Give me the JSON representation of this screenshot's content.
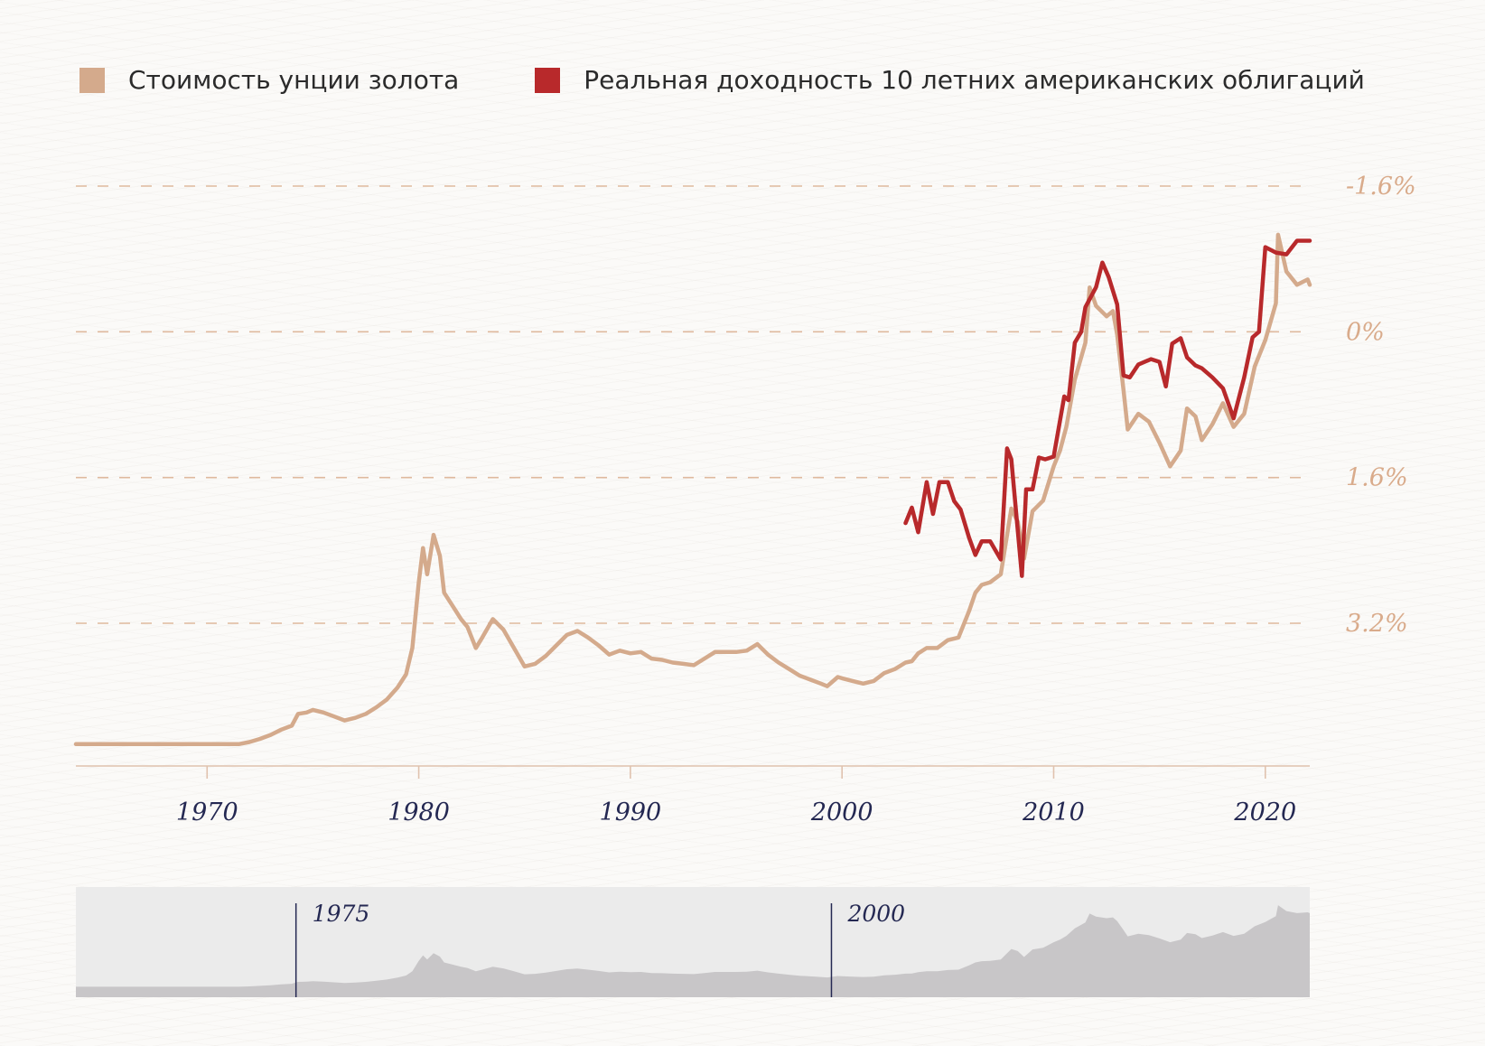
{
  "legend": [
    {
      "label": "Стоимость унции золота",
      "color": "#d4aa8c"
    },
    {
      "label": "Реальная доходность 10 летних американских облигаций",
      "color": "#b8292b"
    }
  ],
  "colors": {
    "gold": "#d4aa8c",
    "yield": "#b8292b",
    "axis_text": "#242852",
    "y_label": "#d9ab8b",
    "navigator_bg": "#ebebeb",
    "navigator_fill": "#c8c6c8"
  },
  "navigator": {
    "handles": [
      {
        "label": "1975"
      },
      {
        "label": "2000"
      }
    ]
  },
  "chart_data": {
    "type": "line",
    "x_unit": "year",
    "xlim": [
      1963.8,
      2022.1
    ],
    "x_ticks": [
      1970,
      1980,
      1990,
      2000,
      2010,
      2020
    ],
    "x_tick_labels": [
      "1970",
      "1980",
      "1990",
      "2000",
      "2010",
      "2020"
    ],
    "right_axis": {
      "inverted": true,
      "ylim": [
        -1.6,
        3.2
      ],
      "ticks": [
        -1.6,
        0,
        1.6,
        3.2
      ],
      "tick_labels": [
        "-1.6%",
        "0%",
        "1.6%",
        "3.2%"
      ]
    },
    "grid": {
      "horizontal_dashed": true
    },
    "legend_position": "top-left",
    "series": [
      {
        "name": "Стоимость унции золота",
        "axis": "left",
        "unit": "USD per ounce",
        "ylim": [
          0,
          2100
        ],
        "points": [
          [
            1963.8,
            35
          ],
          [
            1971.5,
            35
          ],
          [
            1972,
            43
          ],
          [
            1972.5,
            55
          ],
          [
            1973,
            70
          ],
          [
            1973.5,
            90
          ],
          [
            1974,
            105
          ],
          [
            1974.3,
            150
          ],
          [
            1974.7,
            155
          ],
          [
            1975,
            165
          ],
          [
            1975.5,
            155
          ],
          [
            1976,
            140
          ],
          [
            1976.5,
            125
          ],
          [
            1977,
            135
          ],
          [
            1977.5,
            150
          ],
          [
            1978,
            175
          ],
          [
            1978.5,
            205
          ],
          [
            1979,
            250
          ],
          [
            1979.4,
            300
          ],
          [
            1979.7,
            400
          ],
          [
            1980,
            650
          ],
          [
            1980.2,
            780
          ],
          [
            1980.4,
            680
          ],
          [
            1980.7,
            830
          ],
          [
            1981,
            750
          ],
          [
            1981.2,
            610
          ],
          [
            1981.6,
            560
          ],
          [
            1982,
            510
          ],
          [
            1982.3,
            480
          ],
          [
            1982.7,
            400
          ],
          [
            1983,
            440
          ],
          [
            1983.5,
            510
          ],
          [
            1984,
            470
          ],
          [
            1984.5,
            400
          ],
          [
            1985,
            330
          ],
          [
            1985.5,
            340
          ],
          [
            1986,
            370
          ],
          [
            1986.5,
            410
          ],
          [
            1987,
            450
          ],
          [
            1987.5,
            465
          ],
          [
            1988,
            440
          ],
          [
            1988.5,
            410
          ],
          [
            1989,
            375
          ],
          [
            1989.5,
            390
          ],
          [
            1990,
            380
          ],
          [
            1990.5,
            385
          ],
          [
            1991,
            360
          ],
          [
            1991.5,
            355
          ],
          [
            1992,
            345
          ],
          [
            1992.5,
            340
          ],
          [
            1993,
            335
          ],
          [
            1993.5,
            360
          ],
          [
            1994,
            385
          ],
          [
            1994.5,
            385
          ],
          [
            1995,
            385
          ],
          [
            1995.5,
            390
          ],
          [
            1996,
            415
          ],
          [
            1996.5,
            375
          ],
          [
            1997,
            345
          ],
          [
            1997.5,
            320
          ],
          [
            1998,
            295
          ],
          [
            1998.5,
            280
          ],
          [
            1999,
            265
          ],
          [
            1999.3,
            255
          ],
          [
            1999.8,
            290
          ],
          [
            2000,
            285
          ],
          [
            2000.5,
            275
          ],
          [
            2001,
            265
          ],
          [
            2001.5,
            275
          ],
          [
            2002,
            305
          ],
          [
            2002.5,
            320
          ],
          [
            2003,
            345
          ],
          [
            2003.3,
            350
          ],
          [
            2003.6,
            380
          ],
          [
            2004,
            400
          ],
          [
            2004.5,
            400
          ],
          [
            2005,
            430
          ],
          [
            2005.5,
            440
          ],
          [
            2006,
            540
          ],
          [
            2006.3,
            610
          ],
          [
            2006.6,
            640
          ],
          [
            2007,
            650
          ],
          [
            2007.5,
            680
          ],
          [
            2008,
            930
          ],
          [
            2008.3,
            880
          ],
          [
            2008.6,
            740
          ],
          [
            2009,
            920
          ],
          [
            2009.5,
            960
          ],
          [
            2010,
            1090
          ],
          [
            2010.3,
            1150
          ],
          [
            2010.6,
            1240
          ],
          [
            2011,
            1420
          ],
          [
            2011.5,
            1560
          ],
          [
            2011.7,
            1770
          ],
          [
            2012,
            1700
          ],
          [
            2012.5,
            1660
          ],
          [
            2012.8,
            1680
          ],
          [
            2013,
            1590
          ],
          [
            2013.3,
            1380
          ],
          [
            2013.5,
            1230
          ],
          [
            2014,
            1290
          ],
          [
            2014.5,
            1260
          ],
          [
            2015,
            1180
          ],
          [
            2015.5,
            1090
          ],
          [
            2016,
            1150
          ],
          [
            2016.3,
            1310
          ],
          [
            2016.7,
            1280
          ],
          [
            2017,
            1190
          ],
          [
            2017.5,
            1250
          ],
          [
            2018,
            1330
          ],
          [
            2018.5,
            1240
          ],
          [
            2019,
            1290
          ],
          [
            2019.5,
            1470
          ],
          [
            2020,
            1570
          ],
          [
            2020.5,
            1710
          ],
          [
            2020.6,
            1970
          ],
          [
            2021,
            1830
          ],
          [
            2021.5,
            1780
          ],
          [
            2022,
            1800
          ],
          [
            2022.1,
            1780
          ]
        ]
      },
      {
        "name": "Реальная доходность 10 летних американских облигаций",
        "axis": "right",
        "unit": "%",
        "points": [
          [
            2003,
            2.1
          ],
          [
            2003.3,
            1.93
          ],
          [
            2003.6,
            2.2
          ],
          [
            2004,
            1.65
          ],
          [
            2004.3,
            2.0
          ],
          [
            2004.6,
            1.65
          ],
          [
            2005,
            1.65
          ],
          [
            2005.3,
            1.86
          ],
          [
            2005.6,
            1.95
          ],
          [
            2006,
            2.26
          ],
          [
            2006.3,
            2.45
          ],
          [
            2006.6,
            2.3
          ],
          [
            2007,
            2.3
          ],
          [
            2007.5,
            2.5
          ],
          [
            2007.8,
            1.28
          ],
          [
            2008,
            1.4
          ],
          [
            2008.5,
            2.68
          ],
          [
            2008.7,
            1.73
          ],
          [
            2009,
            1.73
          ],
          [
            2009.3,
            1.38
          ],
          [
            2009.6,
            1.4
          ],
          [
            2010,
            1.37
          ],
          [
            2010.5,
            0.71
          ],
          [
            2010.7,
            0.75
          ],
          [
            2011,
            0.12
          ],
          [
            2011.3,
            0.0
          ],
          [
            2011.5,
            -0.27
          ],
          [
            2012,
            -0.49
          ],
          [
            2012.3,
            -0.76
          ],
          [
            2012.6,
            -0.6
          ],
          [
            2013,
            -0.3
          ],
          [
            2013.3,
            0.48
          ],
          [
            2013.6,
            0.5
          ],
          [
            2014,
            0.36
          ],
          [
            2014.3,
            0.33
          ],
          [
            2014.6,
            0.3
          ],
          [
            2015,
            0.33
          ],
          [
            2015.3,
            0.6
          ],
          [
            2015.6,
            0.13
          ],
          [
            2016,
            0.07
          ],
          [
            2016.3,
            0.28
          ],
          [
            2016.7,
            0.37
          ],
          [
            2017,
            0.4
          ],
          [
            2017.5,
            0.5
          ],
          [
            2018,
            0.62
          ],
          [
            2018.5,
            0.95
          ],
          [
            2019,
            0.5
          ],
          [
            2019.4,
            0.06
          ],
          [
            2019.7,
            0.0
          ],
          [
            2020,
            -0.93
          ],
          [
            2020.5,
            -0.87
          ],
          [
            2021,
            -0.85
          ],
          [
            2021.5,
            -1.0
          ],
          [
            2022,
            -1.0
          ],
          [
            2022.1,
            -1.0
          ]
        ]
      }
    ]
  }
}
